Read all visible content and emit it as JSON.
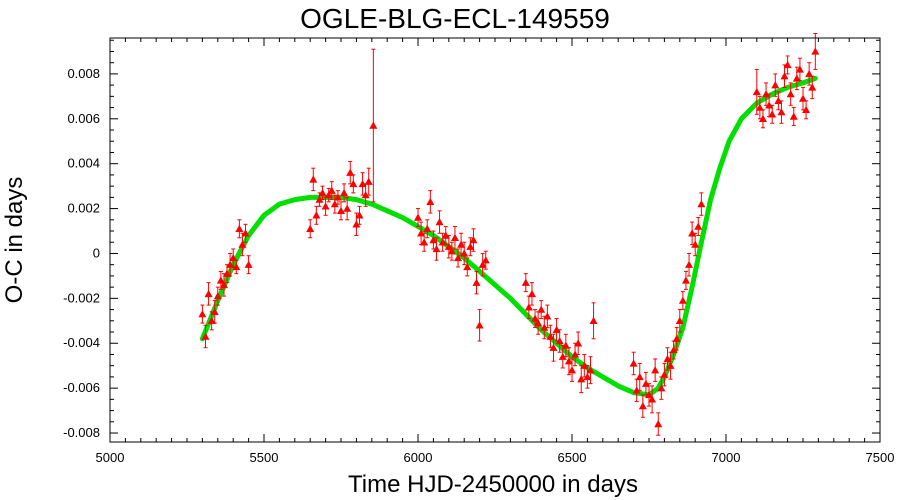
{
  "chart_data": {
    "type": "scatter",
    "title": "OGLE-BLG-ECL-149559",
    "xlabel": "Time HJD-2450000 in days",
    "ylabel": "O-C in days",
    "xlim": [
      5000,
      7500
    ],
    "ylim": [
      -0.0084,
      0.0096
    ],
    "x_ticks": [
      5000,
      5500,
      6000,
      6500,
      7000,
      7500
    ],
    "y_ticks": [
      -0.008,
      -0.006,
      -0.004,
      -0.002,
      0,
      0.002,
      0.004,
      0.006,
      0.008
    ],
    "x_tick_labels": [
      "5000",
      "5500",
      "6000",
      "6500",
      "7000",
      "7500"
    ],
    "y_tick_labels": [
      "-0.008",
      "-0.006",
      "-0.004",
      "-0.002",
      "0",
      "0.002",
      "0.004",
      "0.006",
      "0.008"
    ],
    "grid": false,
    "colors": {
      "points": "#ff0000",
      "fit": "#00e000",
      "axes": "#000000"
    },
    "series": [
      {
        "kind": "observations",
        "marker": "triangle",
        "points": [
          [
            5300,
            -0.0027,
            0.0004
          ],
          [
            5310,
            -0.0037,
            0.0005
          ],
          [
            5320,
            -0.0018,
            0.0005
          ],
          [
            5330,
            -0.003,
            0.0004
          ],
          [
            5340,
            -0.0026,
            0.0005
          ],
          [
            5350,
            -0.0019,
            0.0004
          ],
          [
            5360,
            -0.0012,
            0.0004
          ],
          [
            5370,
            -0.0014,
            0.0005
          ],
          [
            5380,
            -0.0009,
            0.0004
          ],
          [
            5390,
            -0.0005,
            0.0005
          ],
          [
            5400,
            -0.0002,
            0.0004
          ],
          [
            5410,
            -0.0006,
            0.0003
          ],
          [
            5420,
            0.0011,
            0.0004
          ],
          [
            5430,
            0.0004,
            0.0005
          ],
          [
            5440,
            0.0009,
            0.0004
          ],
          [
            5450,
            -0.0005,
            0.0004
          ],
          [
            5650,
            0.0011,
            0.0004
          ],
          [
            5660,
            0.0033,
            0.0005
          ],
          [
            5670,
            0.0017,
            0.0004
          ],
          [
            5680,
            0.0024,
            0.0003
          ],
          [
            5690,
            0.0027,
            0.0003
          ],
          [
            5700,
            0.0021,
            0.0004
          ],
          [
            5710,
            0.0026,
            0.0003
          ],
          [
            5720,
            0.0028,
            0.0004
          ],
          [
            5730,
            0.0022,
            0.0004
          ],
          [
            5740,
            0.0025,
            0.0003
          ],
          [
            5750,
            0.0019,
            0.0004
          ],
          [
            5760,
            0.0027,
            0.0004
          ],
          [
            5770,
            0.002,
            0.0005
          ],
          [
            5780,
            0.0036,
            0.0005
          ],
          [
            5790,
            0.0031,
            0.0004
          ],
          [
            5800,
            0.0013,
            0.0005
          ],
          [
            5810,
            0.0017,
            0.0004
          ],
          [
            5820,
            0.0031,
            0.0005
          ],
          [
            5830,
            0.0026,
            0.0005
          ],
          [
            5840,
            0.0032,
            0.0006
          ],
          [
            5855,
            0.0057,
            0.0034
          ],
          [
            6000,
            0.0016,
            0.0004
          ],
          [
            6010,
            0.0009,
            0.0005
          ],
          [
            6020,
            0.0005,
            0.0004
          ],
          [
            6030,
            0.0011,
            0.0004
          ],
          [
            6040,
            0.0023,
            0.0005
          ],
          [
            6050,
            0.0006,
            0.0004
          ],
          [
            6060,
            0.0002,
            0.0005
          ],
          [
            6070,
            0.0014,
            0.0005
          ],
          [
            6080,
            0.0005,
            0.0004
          ],
          [
            6090,
            0.0008,
            0.0004
          ],
          [
            6100,
            0.0003,
            0.0005
          ],
          [
            6110,
            0.0001,
            0.0004
          ],
          [
            6120,
            0.0007,
            0.0005
          ],
          [
            6130,
            -0.0002,
            0.0004
          ],
          [
            6140,
            0.0004,
            0.0005
          ],
          [
            6150,
            0.0,
            0.0005
          ],
          [
            6160,
            -0.0006,
            0.0004
          ],
          [
            6170,
            0.0003,
            0.0004
          ],
          [
            6180,
            0.0006,
            0.0005
          ],
          [
            6190,
            -0.0013,
            0.0005
          ],
          [
            6200,
            -0.0032,
            0.0007
          ],
          [
            6210,
            -0.0005,
            0.0005
          ],
          [
            6220,
            -0.0003,
            0.0004
          ],
          [
            6350,
            -0.0013,
            0.0004
          ],
          [
            6360,
            -0.0024,
            0.0005
          ],
          [
            6370,
            -0.0018,
            0.0005
          ],
          [
            6380,
            -0.0029,
            0.0004
          ],
          [
            6390,
            -0.0031,
            0.0005
          ],
          [
            6400,
            -0.0025,
            0.0004
          ],
          [
            6410,
            -0.0033,
            0.0005
          ],
          [
            6420,
            -0.0028,
            0.0005
          ],
          [
            6430,
            -0.0037,
            0.0005
          ],
          [
            6440,
            -0.0042,
            0.0006
          ],
          [
            6450,
            -0.0034,
            0.0005
          ],
          [
            6460,
            -0.0039,
            0.0005
          ],
          [
            6470,
            -0.0046,
            0.0005
          ],
          [
            6480,
            -0.0041,
            0.0005
          ],
          [
            6490,
            -0.0048,
            0.0006
          ],
          [
            6500,
            -0.0052,
            0.0005
          ],
          [
            6510,
            -0.0045,
            0.0005
          ],
          [
            6520,
            -0.004,
            0.0005
          ],
          [
            6530,
            -0.0056,
            0.0006
          ],
          [
            6540,
            -0.005,
            0.0005
          ],
          [
            6550,
            -0.0055,
            0.0005
          ],
          [
            6560,
            -0.0052,
            0.0006
          ],
          [
            6570,
            -0.003,
            0.0008
          ],
          [
            6700,
            -0.0049,
            0.0005
          ],
          [
            6710,
            -0.0061,
            0.0005
          ],
          [
            6720,
            -0.0055,
            0.0006
          ],
          [
            6730,
            -0.0068,
            0.0005
          ],
          [
            6740,
            -0.0058,
            0.0005
          ],
          [
            6750,
            -0.0063,
            0.0005
          ],
          [
            6760,
            -0.0065,
            0.0006
          ],
          [
            6770,
            -0.0052,
            0.0005
          ],
          [
            6780,
            -0.0076,
            0.0005
          ],
          [
            6790,
            -0.006,
            0.0005
          ],
          [
            6800,
            -0.0054,
            0.0005
          ],
          [
            6810,
            -0.0047,
            0.0005
          ],
          [
            6820,
            -0.005,
            0.0006
          ],
          [
            6830,
            -0.0043,
            0.0004
          ],
          [
            6840,
            -0.0038,
            0.0005
          ],
          [
            6850,
            -0.003,
            0.0005
          ],
          [
            6860,
            -0.0021,
            0.0004
          ],
          [
            6870,
            -0.0012,
            0.0004
          ],
          [
            6880,
            -0.0005,
            0.0005
          ],
          [
            6890,
            0.0009,
            0.0005
          ],
          [
            6900,
            0.0004,
            0.0005
          ],
          [
            6910,
            0.0012,
            0.0004
          ],
          [
            6920,
            0.0022,
            0.0005
          ],
          [
            7100,
            0.0072,
            0.001
          ],
          [
            7110,
            0.0065,
            0.0005
          ],
          [
            7120,
            0.006,
            0.0004
          ],
          [
            7130,
            0.0071,
            0.0005
          ],
          [
            7140,
            0.0066,
            0.0005
          ],
          [
            7150,
            0.0062,
            0.0004
          ],
          [
            7160,
            0.0075,
            0.0005
          ],
          [
            7170,
            0.0068,
            0.0004
          ],
          [
            7180,
            0.0063,
            0.0005
          ],
          [
            7190,
            0.0079,
            0.0005
          ],
          [
            7200,
            0.0084,
            0.0004
          ],
          [
            7210,
            0.0071,
            0.0005
          ],
          [
            7220,
            0.0061,
            0.0004
          ],
          [
            7230,
            0.0078,
            0.0005
          ],
          [
            7240,
            0.0082,
            0.0005
          ],
          [
            7250,
            0.0069,
            0.0005
          ],
          [
            7260,
            0.0064,
            0.0004
          ],
          [
            7270,
            0.008,
            0.0005
          ],
          [
            7280,
            0.0074,
            0.0005
          ],
          [
            7290,
            0.009,
            0.0008
          ]
        ]
      },
      {
        "kind": "fit",
        "line": true,
        "points": [
          [
            5300,
            -0.0038
          ],
          [
            5350,
            -0.0021
          ],
          [
            5400,
            -0.0005
          ],
          [
            5450,
            0.0008
          ],
          [
            5500,
            0.0017
          ],
          [
            5550,
            0.0022
          ],
          [
            5600,
            0.0024
          ],
          [
            5650,
            0.0025
          ],
          [
            5700,
            0.0025
          ],
          [
            5750,
            0.0025
          ],
          [
            5800,
            0.0024
          ],
          [
            5850,
            0.0022
          ],
          [
            5900,
            0.0019
          ],
          [
            5950,
            0.0016
          ],
          [
            6000,
            0.0012
          ],
          [
            6050,
            0.0008
          ],
          [
            6100,
            0.0003
          ],
          [
            6150,
            -0.0002
          ],
          [
            6200,
            -0.0008
          ],
          [
            6250,
            -0.0014
          ],
          [
            6300,
            -0.002
          ],
          [
            6350,
            -0.0027
          ],
          [
            6400,
            -0.0034
          ],
          [
            6450,
            -0.004
          ],
          [
            6500,
            -0.0046
          ],
          [
            6550,
            -0.0051
          ],
          [
            6600,
            -0.0055
          ],
          [
            6650,
            -0.0059
          ],
          [
            6700,
            -0.0062
          ],
          [
            6750,
            -0.0063
          ],
          [
            6780,
            -0.006
          ],
          [
            6800,
            -0.0055
          ],
          [
            6830,
            -0.0045
          ],
          [
            6860,
            -0.0033
          ],
          [
            6890,
            -0.0015
          ],
          [
            6920,
            0.0005
          ],
          [
            6950,
            0.0024
          ],
          [
            6980,
            0.0038
          ],
          [
            7010,
            0.005
          ],
          [
            7050,
            0.006
          ],
          [
            7100,
            0.0067
          ],
          [
            7150,
            0.0071
          ],
          [
            7200,
            0.0074
          ],
          [
            7250,
            0.0076
          ],
          [
            7290,
            0.0078
          ]
        ]
      }
    ]
  }
}
